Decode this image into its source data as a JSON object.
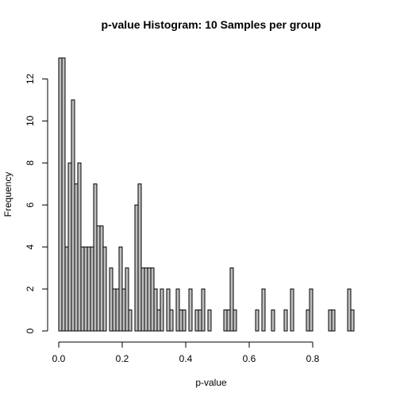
{
  "chart_data": {
    "type": "bar",
    "title": "p-value Histogram: 10 Samples per group",
    "xlabel": "p-value",
    "ylabel": "Frequency",
    "bin_width": 0.01,
    "bin_start": 0.0,
    "xlim": [
      0.0,
      0.96
    ],
    "ylim": [
      0,
      13
    ],
    "x_ticks": [
      0.0,
      0.2,
      0.4,
      0.6,
      0.8
    ],
    "x_tick_labels": [
      "0.0",
      "0.2",
      "0.4",
      "0.6",
      "0.8"
    ],
    "y_ticks": [
      0,
      2,
      4,
      6,
      8,
      10,
      12
    ],
    "y_tick_labels": [
      "0",
      "2",
      "4",
      "6",
      "8",
      "10",
      "12"
    ],
    "bar_fill": "#bebebe",
    "grid": false,
    "values": [
      13,
      13,
      4,
      8,
      11,
      7,
      8,
      4,
      4,
      4,
      4,
      7,
      5,
      5,
      4,
      0,
      3,
      2,
      2,
      4,
      2,
      3,
      1,
      0,
      6,
      7,
      3,
      3,
      3,
      3,
      2,
      1,
      2,
      0,
      2,
      1,
      0,
      2,
      1,
      1,
      0,
      2,
      0,
      1,
      1,
      2,
      0,
      1,
      0,
      0,
      0,
      0,
      1,
      1,
      3,
      1,
      0,
      0,
      0,
      0,
      0,
      0,
      1,
      0,
      2,
      0,
      0,
      1,
      0,
      0,
      0,
      1,
      0,
      2,
      0,
      0,
      0,
      0,
      1,
      2,
      0,
      0,
      0,
      0,
      0,
      1,
      1,
      0,
      0,
      0,
      0,
      2,
      1,
      0,
      0,
      0,
      0,
      0,
      0,
      0,
      2,
      0,
      0,
      1,
      0,
      0,
      0,
      0,
      2,
      1,
      0,
      2,
      1
    ]
  }
}
